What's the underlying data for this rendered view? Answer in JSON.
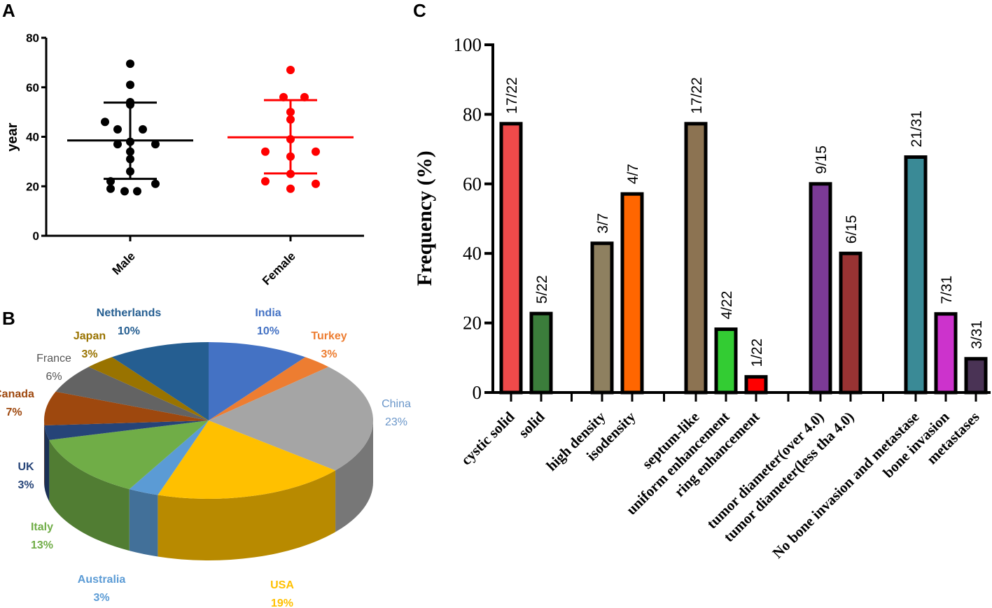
{
  "panels": {
    "a": "A",
    "b": "B",
    "c": "C"
  },
  "chart_data": [
    {
      "id": "A",
      "type": "scatter",
      "ylabel": "year",
      "xlabel": "",
      "ylim": [
        0,
        80
      ],
      "yticks": [
        "0",
        "20",
        "40",
        "60",
        "80"
      ],
      "categories": [
        "Male",
        "Female"
      ],
      "series": [
        {
          "name": "Male",
          "color": "#000000",
          "mean": 38.5,
          "sd_upper": 53.8,
          "sd_lower": 23,
          "values": [
            69.5,
            61,
            54,
            53,
            46,
            43,
            43,
            38,
            37,
            37,
            34,
            31,
            26,
            22,
            21,
            19,
            18,
            18
          ]
        },
        {
          "name": "Female",
          "color": "#ff0000",
          "mean": 39.8,
          "sd_upper": 54.8,
          "sd_lower": 25.2,
          "values": [
            67,
            56,
            56,
            50,
            47,
            39,
            34,
            34,
            32,
            25,
            22,
            21,
            19
          ]
        }
      ]
    },
    {
      "id": "B",
      "type": "pie",
      "slices": [
        {
          "label": "India",
          "percent": "10%",
          "value": 10,
          "color": "#4472c4"
        },
        {
          "label": "Turkey",
          "percent": "3%",
          "value": 3,
          "color": "#ed7d31"
        },
        {
          "label": "China",
          "percent": "23%",
          "value": 23,
          "color": "#a5a5a5"
        },
        {
          "label": "USA",
          "percent": "19%",
          "value": 19,
          "color": "#ffc000"
        },
        {
          "label": "Australia",
          "percent": "3%",
          "value": 3,
          "color": "#5b9bd5"
        },
        {
          "label": "Italy",
          "percent": "13%",
          "value": 13,
          "color": "#70ad47"
        },
        {
          "label": "UK",
          "percent": "3%",
          "value": 3,
          "color": "#264478"
        },
        {
          "label": "Canada",
          "percent": "7%",
          "value": 7,
          "color": "#9e480e"
        },
        {
          "label": "France",
          "percent": "6%",
          "value": 6,
          "color": "#636363"
        },
        {
          "label": "Japan",
          "percent": "3%",
          "value": 3,
          "color": "#997300"
        },
        {
          "label": "Netherlands",
          "percent": "10%",
          "value": 10,
          "color": "#255e91"
        }
      ]
    },
    {
      "id": "C",
      "type": "bar",
      "ylabel": "Frequency (%)",
      "ylim": [
        0,
        100
      ],
      "yticks": [
        "0",
        "20",
        "40",
        "60",
        "80",
        "100"
      ],
      "groups": [
        {
          "bars": [
            {
              "label": "cystic solid",
              "value": 77.3,
              "text": "17/22",
              "color": "#f04a4a"
            },
            {
              "label": "solid",
              "value": 22.7,
              "text": "5/22",
              "color": "#3b7d3b"
            }
          ]
        },
        {
          "bars": [
            {
              "label": "high density",
              "value": 42.9,
              "text": "3/7",
              "color": "#8e8060"
            },
            {
              "label": "isodensity",
              "value": 57.1,
              "text": "4/7",
              "color": "#ff6600"
            }
          ]
        },
        {
          "bars": [
            {
              "label": "septum-like",
              "value": 77.3,
              "text": "17/22",
              "color": "#8c7352"
            },
            {
              "label": "uniform enhancement",
              "value": 18.2,
              "text": "4/22",
              "color": "#33cc33"
            },
            {
              "label": "ring enhancement",
              "value": 4.5,
              "text": "1/22",
              "color": "#ff0000"
            }
          ]
        },
        {
          "bars": [
            {
              "label": "tumor diameter(over 4.0)",
              "value": 60,
              "text": "9/15",
              "color": "#7b3a96"
            },
            {
              "label": "tumor diameter(less tha 4.0)",
              "value": 40,
              "text": "6/15",
              "color": "#993333"
            }
          ]
        },
        {
          "bars": [
            {
              "label": "No bone invasion and metastase",
              "value": 67.7,
              "text": "21/31",
              "color": "#3a8a96"
            },
            {
              "label": "bone invasion",
              "value": 22.6,
              "text": "7/31",
              "color": "#cc33cc"
            },
            {
              "label": "metastases",
              "value": 9.7,
              "text": "3/31",
              "color": "#4a3355"
            }
          ]
        }
      ]
    }
  ]
}
